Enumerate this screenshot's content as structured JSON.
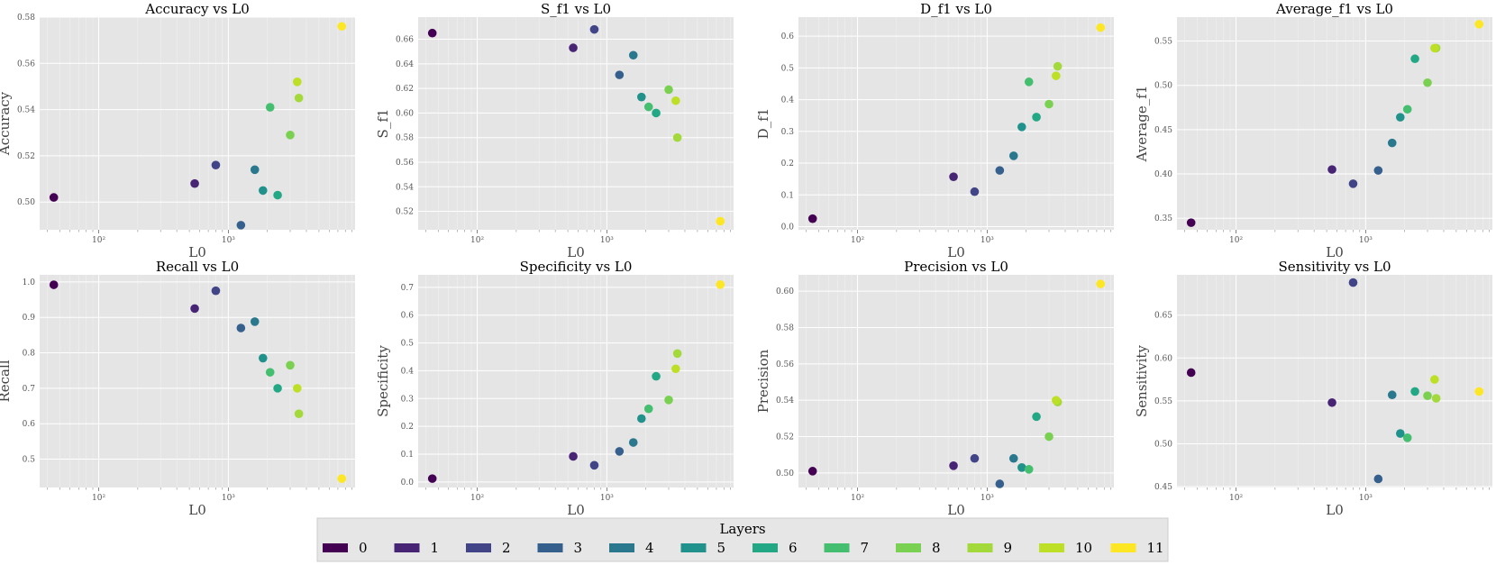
{
  "layers": [
    {
      "layer": 0,
      "color": "#440154",
      "L0": 45
    },
    {
      "layer": 1,
      "color": "#482475",
      "L0": 550
    },
    {
      "layer": 2,
      "color": "#414487",
      "L0": 800
    },
    {
      "layer": 3,
      "color": "#355f8d",
      "L0": 1250
    },
    {
      "layer": 4,
      "color": "#2a788e",
      "L0": 1600
    },
    {
      "layer": 5,
      "color": "#21918c",
      "L0": 1850
    },
    {
      "layer": 6,
      "color": "#22a884",
      "L0": 2400
    },
    {
      "layer": 7,
      "color": "#44bf70",
      "L0": 2100
    },
    {
      "layer": 8,
      "color": "#7ad151",
      "L0": 3000
    },
    {
      "layer": 9,
      "color": "#a4d93b",
      "L0": 3500
    },
    {
      "layer": 10,
      "color": "#bddf26",
      "L0": 3400
    },
    {
      "layer": 11,
      "color": "#fde725",
      "L0": 7500
    }
  ],
  "legend": {
    "title": "Layers",
    "labels": [
      "0",
      "1",
      "2",
      "3",
      "4",
      "5",
      "6",
      "7",
      "8",
      "9",
      "10",
      "11"
    ]
  },
  "chart_data": [
    {
      "type": "scatter",
      "title": "Accuracy vs L0",
      "xlabel": "L0",
      "ylabel": "Accuracy",
      "xscale": "log",
      "xlim": [
        35,
        9500
      ],
      "ylim": [
        0.488,
        0.58
      ],
      "yticks": [
        0.5,
        0.52,
        0.54,
        0.56,
        0.58
      ],
      "ytick_labels": [
        "0.50",
        "0.52",
        "0.54",
        "0.56",
        "0.58"
      ],
      "xticks": [
        100,
        1000
      ],
      "xtick_labels": [
        "10²",
        "10³"
      ],
      "values": [
        0.502,
        0.508,
        0.516,
        0.49,
        0.514,
        0.505,
        0.503,
        0.541,
        0.529,
        0.545,
        0.552,
        0.576
      ]
    },
    {
      "type": "scatter",
      "title": "S_f1 vs L0",
      "xlabel": "",
      "ylabel": "S_f1",
      "xscale": "log",
      "xlim": [
        35,
        9500
      ],
      "ylim": [
        0.505,
        0.678
      ],
      "yticks": [
        0.52,
        0.54,
        0.56,
        0.58,
        0.6,
        0.62,
        0.64,
        0.66
      ],
      "ytick_labels": [
        "0.52",
        "0.54",
        "0.56",
        "0.58",
        "0.60",
        "0.62",
        "0.64",
        "0.66"
      ],
      "xticks": [
        100,
        1000
      ],
      "xtick_labels": [
        "10²",
        "10³"
      ],
      "values": [
        0.665,
        0.653,
        0.668,
        0.631,
        0.647,
        0.613,
        0.6,
        0.605,
        0.619,
        0.58,
        0.61,
        0.512
      ]
    },
    {
      "type": "scatter",
      "title": "D_f1 vs L0",
      "xlabel": "",
      "ylabel": "D_f1",
      "xscale": "log",
      "xlim": [
        35,
        9500
      ],
      "ylim": [
        -0.01,
        0.66
      ],
      "yticks": [
        0.0,
        0.1,
        0.2,
        0.3,
        0.4,
        0.5,
        0.6
      ],
      "ytick_labels": [
        "0.0",
        "0.1",
        "0.2",
        "0.3",
        "0.4",
        "0.5",
        "0.6"
      ],
      "xticks": [
        100,
        1000
      ],
      "xtick_labels": [
        "10²",
        "10³"
      ],
      "values": [
        0.025,
        0.157,
        0.11,
        0.177,
        0.223,
        0.314,
        0.345,
        0.456,
        0.386,
        0.505,
        0.475,
        0.627
      ]
    },
    {
      "type": "scatter",
      "title": "Average_f1 vs L0",
      "xlabel": "",
      "ylabel": "Average_f1",
      "xscale": "log",
      "xlim": [
        35,
        9500
      ],
      "ylim": [
        0.337,
        0.577
      ],
      "yticks": [
        0.35,
        0.4,
        0.45,
        0.5,
        0.55
      ],
      "ytick_labels": [
        "0.35",
        "0.40",
        "0.45",
        "0.50",
        "0.55"
      ],
      "xticks": [
        100,
        1000
      ],
      "xtick_labels": [
        "10²",
        "10³"
      ],
      "values": [
        0.345,
        0.405,
        0.389,
        0.404,
        0.435,
        0.464,
        0.53,
        0.473,
        0.503,
        0.542,
        0.542,
        0.569
      ]
    },
    {
      "type": "scatter",
      "title": "Recall vs L0",
      "xlabel": "L0",
      "ylabel": "Recall",
      "xscale": "log",
      "xlim": [
        35,
        9500
      ],
      "ylim": [
        0.42,
        1.02
      ],
      "yticks": [
        0.5,
        0.6,
        0.7,
        0.8,
        0.9,
        1.0
      ],
      "ytick_labels": [
        "0.5",
        "0.6",
        "0.7",
        "0.8",
        "0.9",
        "1.0"
      ],
      "xticks": [
        100,
        1000
      ],
      "xtick_labels": [
        "10²",
        "10³"
      ],
      "values": [
        0.992,
        0.925,
        0.975,
        0.87,
        0.888,
        0.785,
        0.7,
        0.745,
        0.765,
        0.628,
        0.7,
        0.445
      ]
    },
    {
      "type": "scatter",
      "title": "Specificity vs L0",
      "xlabel": "L0",
      "ylabel": "Specificity",
      "xscale": "log",
      "xlim": [
        35,
        9500
      ],
      "ylim": [
        -0.02,
        0.745
      ],
      "yticks": [
        0.0,
        0.1,
        0.2,
        0.3,
        0.4,
        0.5,
        0.6,
        0.7
      ],
      "ytick_labels": [
        "0.0",
        "0.1",
        "0.2",
        "0.3",
        "0.4",
        "0.5",
        "0.6",
        "0.7"
      ],
      "xticks": [
        100,
        1000
      ],
      "xtick_labels": [
        "10²",
        "10³"
      ],
      "values": [
        0.012,
        0.092,
        0.06,
        0.11,
        0.142,
        0.228,
        0.38,
        0.263,
        0.295,
        0.462,
        0.407,
        0.71
      ]
    },
    {
      "type": "scatter",
      "title": "Precision vs L0",
      "xlabel": "L0",
      "ylabel": "Precision",
      "xscale": "log",
      "xlim": [
        35,
        9500
      ],
      "ylim": [
        0.492,
        0.609
      ],
      "yticks": [
        0.5,
        0.52,
        0.54,
        0.56,
        0.58,
        0.6
      ],
      "ytick_labels": [
        "0.50",
        "0.52",
        "0.54",
        "0.56",
        "0.58",
        "0.60"
      ],
      "xticks": [
        100,
        1000
      ],
      "xtick_labels": [
        "10²",
        "10³"
      ],
      "values": [
        0.501,
        0.504,
        0.508,
        0.494,
        0.508,
        0.503,
        0.531,
        0.502,
        0.52,
        0.539,
        0.54,
        0.604
      ]
    },
    {
      "type": "scatter",
      "title": "Sensitivity vs L0",
      "xlabel": "L0",
      "ylabel": "Sensitivity",
      "xscale": "log",
      "xlim": [
        35,
        9500
      ],
      "ylim": [
        0.449,
        0.697
      ],
      "yticks": [
        0.45,
        0.5,
        0.55,
        0.6,
        0.65
      ],
      "ytick_labels": [
        "0.45",
        "0.50",
        "0.55",
        "0.60",
        "0.65"
      ],
      "xticks": [
        100,
        1000
      ],
      "xtick_labels": [
        "10²",
        "10³"
      ],
      "values": [
        0.583,
        0.548,
        0.688,
        0.459,
        0.557,
        0.512,
        0.561,
        0.507,
        0.556,
        0.553,
        0.575,
        0.561
      ]
    }
  ]
}
